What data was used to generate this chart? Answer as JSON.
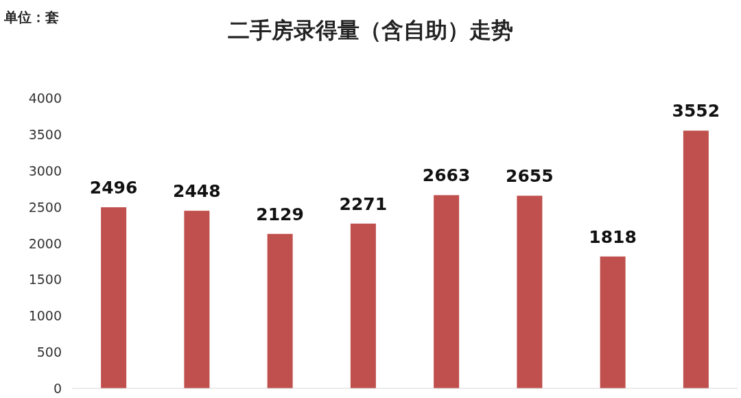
{
  "chart_data": {
    "type": "bar",
    "title": "二手房录得量（含自助）走势",
    "annotations": [
      "单位：套"
    ],
    "categories": [
      null,
      null,
      null,
      null,
      null,
      null,
      null,
      null
    ],
    "values": [
      2496,
      2448,
      2129,
      2271,
      2663,
      2655,
      1818,
      3552
    ],
    "color": "#c0504d",
    "ylim": [
      0,
      4000
    ],
    "yticks": [
      0,
      500,
      1000,
      1500,
      2000,
      2500,
      3000,
      3500,
      4000
    ],
    "data_labels": true,
    "grid": false
  }
}
